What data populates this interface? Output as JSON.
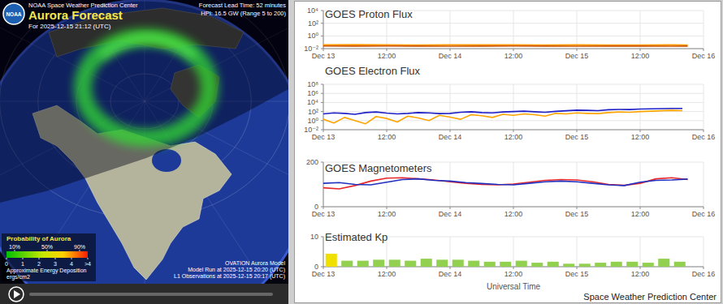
{
  "aurora_map": {
    "logo_text": "NOAA",
    "header": "NOAA Space Weather Prediction Center",
    "title": "Aurora Forecast",
    "valid_time": "For 2025-12-15 21:12 (UTC)",
    "lead_time": "Forecast Lead Time: 52 minutes",
    "hpi": "HPI: 16.5 GW (Range 5 to 200)",
    "probability_scale": {
      "title": "Probability of Aurora",
      "lim": [
        0,
        100
      ],
      "ticks": [
        {
          "value": 10,
          "label": "10%"
        },
        {
          "value": 50,
          "label": "50%"
        },
        {
          "value": 90,
          "label": "90%"
        }
      ]
    },
    "energy_scale": {
      "title": "Approximate Energy Deposition",
      "units": "ergs/cm2",
      "lim": [
        0,
        5
      ],
      "ticks": [
        0,
        1,
        2,
        3,
        4,
        {
          "value": 5,
          "label": ">4"
        }
      ]
    },
    "model": "OVATION Aurora Model",
    "model_run": "Model Run at 2025-12-15 20:20 (UTC)",
    "l1_observations": "L1 Observations at 2025-12-15 20:17 (UTC)"
  },
  "footer": "Space Weather Prediction Center",
  "chart_data": [
    {
      "type": "line",
      "title": "GOES Proton Flux",
      "log": "y",
      "grid": true,
      "x": [
        0,
        6,
        12,
        18,
        24,
        30,
        36,
        42,
        48,
        54,
        60,
        66,
        69
      ],
      "xlim": [
        0,
        72
      ],
      "xticks": [
        {
          "value": 0,
          "label": "Dec 13"
        },
        {
          "value": 12,
          "label": "12:00"
        },
        {
          "value": 24,
          "label": "Dec 14"
        },
        {
          "value": 36,
          "label": "12:00"
        },
        {
          "value": 48,
          "label": "Dec 15"
        },
        {
          "value": 60,
          "label": "12:00"
        },
        {
          "value": 72,
          "label": "Dec 16"
        }
      ],
      "ylim": [
        0.01,
        10000
      ],
      "yticks": [
        {
          "value": 0.01,
          "label": "10⁻²"
        },
        {
          "value": 1,
          "label": "10⁰"
        },
        {
          "value": 100,
          "label": "10²"
        },
        {
          "value": 10000,
          "label": "10⁴"
        }
      ],
      "series": [
        {
          "color": "#ff9900",
          "values": [
            0.04,
            0.042,
            0.04,
            0.038,
            0.041,
            0.039,
            0.04,
            0.038,
            0.039,
            0.037,
            0.038,
            0.039,
            0.038
          ]
        },
        {
          "color": "#cc5500",
          "values": [
            0.026,
            0.025,
            0.026,
            0.025,
            0.024,
            0.025,
            0.026,
            0.025,
            0.024,
            0.025,
            0.025,
            0.024,
            0.025
          ]
        }
      ]
    },
    {
      "type": "line",
      "title": "GOES Electron Flux",
      "log": "y",
      "grid": true,
      "x": [
        0,
        2,
        4,
        6,
        8,
        10,
        12,
        14,
        16,
        18,
        20,
        22,
        24,
        26,
        28,
        30,
        32,
        34,
        36,
        38,
        40,
        42,
        44,
        46,
        48,
        50,
        52,
        54,
        56,
        58,
        60,
        62,
        64,
        66,
        68
      ],
      "xlim": [
        0,
        72
      ],
      "xticks": [
        {
          "value": 0,
          "label": "Dec 13"
        },
        {
          "value": 12,
          "label": "12:00"
        },
        {
          "value": 24,
          "label": "Dec 14"
        },
        {
          "value": 36,
          "label": "12:00"
        },
        {
          "value": 48,
          "label": "Dec 15"
        },
        {
          "value": 60,
          "label": "12:00"
        },
        {
          "value": 72,
          "label": "Dec 16"
        }
      ],
      "ylim": [
        0.01,
        100000000
      ],
      "yticks": [
        {
          "value": 0.01,
          "label": "10⁻²"
        },
        {
          "value": 1,
          "label": "10⁰"
        },
        {
          "value": 100,
          "label": "10²"
        },
        {
          "value": 10000,
          "label": "10⁴"
        },
        {
          "value": 1000000,
          "label": "10⁶"
        },
        {
          "value": 100000000,
          "label": "10⁸"
        }
      ],
      "series": [
        {
          "color": "#1f1fc8",
          "values": [
            30,
            50,
            40,
            25,
            60,
            80,
            45,
            30,
            40,
            60,
            50,
            35,
            40,
            70,
            90,
            60,
            50,
            80,
            100,
            120,
            90,
            70,
            110,
            150,
            200,
            180,
            160,
            250,
            300,
            280,
            350,
            400,
            450,
            500,
            480
          ]
        },
        {
          "color": "#ffa500",
          "values": [
            2,
            0.3,
            5,
            1,
            0.2,
            8,
            3,
            0.5,
            10,
            4,
            1,
            15,
            6,
            2,
            20,
            12,
            5,
            25,
            15,
            30,
            20,
            10,
            40,
            30,
            50,
            40,
            35,
            60,
            80,
            70,
            100,
            120,
            150,
            180,
            160
          ]
        }
      ]
    },
    {
      "type": "line",
      "title": "GOES Magnetometers",
      "grid": true,
      "x": [
        0,
        3,
        6,
        9,
        12,
        15,
        18,
        21,
        24,
        27,
        30,
        33,
        36,
        39,
        42,
        45,
        48,
        51,
        54,
        57,
        60,
        63,
        66,
        69
      ],
      "xlim": [
        0,
        72
      ],
      "xticks": [
        {
          "value": 0,
          "label": "Dec 13"
        },
        {
          "value": 12,
          "label": "12:00"
        },
        {
          "value": 24,
          "label": "Dec 14"
        },
        {
          "value": 36,
          "label": "12:00"
        },
        {
          "value": 48,
          "label": "Dec 15"
        },
        {
          "value": 60,
          "label": "12:00"
        },
        {
          "value": 72,
          "label": "Dec 16"
        }
      ],
      "ylim": [
        0,
        200
      ],
      "yticks": [
        0,
        200
      ],
      "series": [
        {
          "color": "#e8272a",
          "values": [
            85,
            80,
            95,
            115,
            128,
            130,
            125,
            120,
            112,
            105,
            100,
            98,
            102,
            110,
            118,
            122,
            120,
            112,
            100,
            96,
            105,
            125,
            130,
            122
          ]
        },
        {
          "color": "#2030c0",
          "values": [
            105,
            108,
            100,
            98,
            110,
            122,
            125,
            118,
            115,
            108,
            104,
            100,
            98,
            105,
            112,
            115,
            112,
            105,
            98,
            95,
            110,
            118,
            120,
            124
          ]
        }
      ]
    },
    {
      "type": "bar",
      "title": "Estimated Kp",
      "x_label": "Universal Time",
      "grid": true,
      "x": [
        0,
        3,
        6,
        9,
        12,
        15,
        18,
        21,
        24,
        27,
        30,
        33,
        36,
        39,
        42,
        45,
        48,
        51,
        54,
        57,
        60,
        63,
        66
      ],
      "xlim": [
        0,
        72
      ],
      "xticks": [
        {
          "value": 0,
          "label": "Dec 13"
        },
        {
          "value": 12,
          "label": "12:00"
        },
        {
          "value": 24,
          "label": "Dec 14"
        },
        {
          "value": 36,
          "label": "12:00"
        },
        {
          "value": 48,
          "label": "Dec 15"
        },
        {
          "value": 60,
          "label": "12:00"
        },
        {
          "value": 72,
          "label": "Dec 16"
        }
      ],
      "ylim": [
        0,
        10
      ],
      "yticks": [
        0,
        10
      ],
      "values": [
        4.33,
        2,
        2,
        2.33,
        2.33,
        2,
        2.67,
        2.33,
        2.33,
        2,
        1.67,
        1.67,
        2,
        1.33,
        1.67,
        1,
        1,
        1.33,
        1.67,
        1.67,
        1.33,
        2.67,
        1.67
      ],
      "colors": [
        "#f0e000",
        "#92d050",
        "#92d050",
        "#92d050",
        "#92d050",
        "#92d050",
        "#92d050",
        "#92d050",
        "#92d050",
        "#92d050",
        "#92d050",
        "#92d050",
        "#92d050",
        "#92d050",
        "#92d050",
        "#92d050",
        "#92d050",
        "#92d050",
        "#92d050",
        "#92d050",
        "#92d050",
        "#92d050",
        "#92d050"
      ]
    }
  ]
}
